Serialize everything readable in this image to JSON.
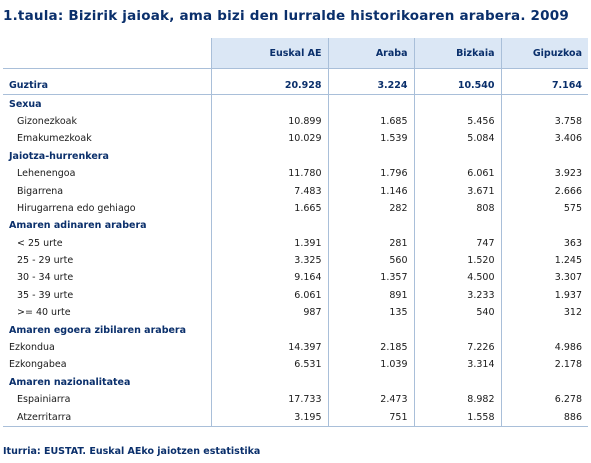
{
  "title": "1.taula: Bizirik jaioak, ama bizi den lurralde historikoaren arabera. 2009",
  "headers": [
    "Euskal AE",
    "Araba",
    "Bizkaia",
    "Gipuzkoa"
  ],
  "total": {
    "label": "Guztira",
    "values": [
      "20.928",
      "3.224",
      "10.540",
      "7.164"
    ]
  },
  "sections": [
    {
      "label": "Sexua",
      "indent": true,
      "rows": [
        {
          "label": "Gizonezkoak",
          "values": [
            "10.899",
            "1.685",
            "5.456",
            "3.758"
          ]
        },
        {
          "label": "Emakumezkoak",
          "values": [
            "10.029",
            "1.539",
            "5.084",
            "3.406"
          ]
        }
      ]
    },
    {
      "label": "Jaiotza-hurrenkera",
      "indent": true,
      "rows": [
        {
          "label": "Lehenengoa",
          "values": [
            "11.780",
            "1.796",
            "6.061",
            "3.923"
          ]
        },
        {
          "label": "Bigarrena",
          "values": [
            "7.483",
            "1.146",
            "3.671",
            "2.666"
          ]
        },
        {
          "label": "Hirugarrena edo gehiago",
          "values": [
            "1.665",
            "282",
            "808",
            "575"
          ]
        }
      ]
    },
    {
      "label": "Amaren adinaren arabera",
      "indent": true,
      "rows": [
        {
          "label": "< 25 urte",
          "values": [
            "1.391",
            "281",
            "747",
            "363"
          ]
        },
        {
          "label": "25 - 29 urte",
          "values": [
            "3.325",
            "560",
            "1.520",
            "1.245"
          ]
        },
        {
          "label": "30 - 34 urte",
          "values": [
            "9.164",
            "1.357",
            "4.500",
            "3.307"
          ]
        },
        {
          "label": "35 - 39 urte",
          "values": [
            "6.061",
            "891",
            "3.233",
            "1.937"
          ]
        },
        {
          "label": ">= 40 urte",
          "values": [
            "987",
            "135",
            "540",
            "312"
          ]
        }
      ]
    },
    {
      "label": "Amaren egoera zibilaren arabera",
      "indent": false,
      "rows": [
        {
          "label": "Ezkondua",
          "values": [
            "14.397",
            "2.185",
            "7.226",
            "4.986"
          ]
        },
        {
          "label": "Ezkongabea",
          "values": [
            "6.531",
            "1.039",
            "3.314",
            "2.178"
          ]
        }
      ]
    },
    {
      "label": "Amaren nazionalitatea",
      "indent": true,
      "rows": [
        {
          "label": "Espainiarra",
          "values": [
            "17.733",
            "2.473",
            "8.982",
            "6.278"
          ]
        },
        {
          "label": "Atzerritarra",
          "values": [
            "3.195",
            "751",
            "1.558",
            "886"
          ]
        }
      ]
    }
  ],
  "source": "Iturria: EUSTAT. Euskal AEko jaiotzen estatistika"
}
